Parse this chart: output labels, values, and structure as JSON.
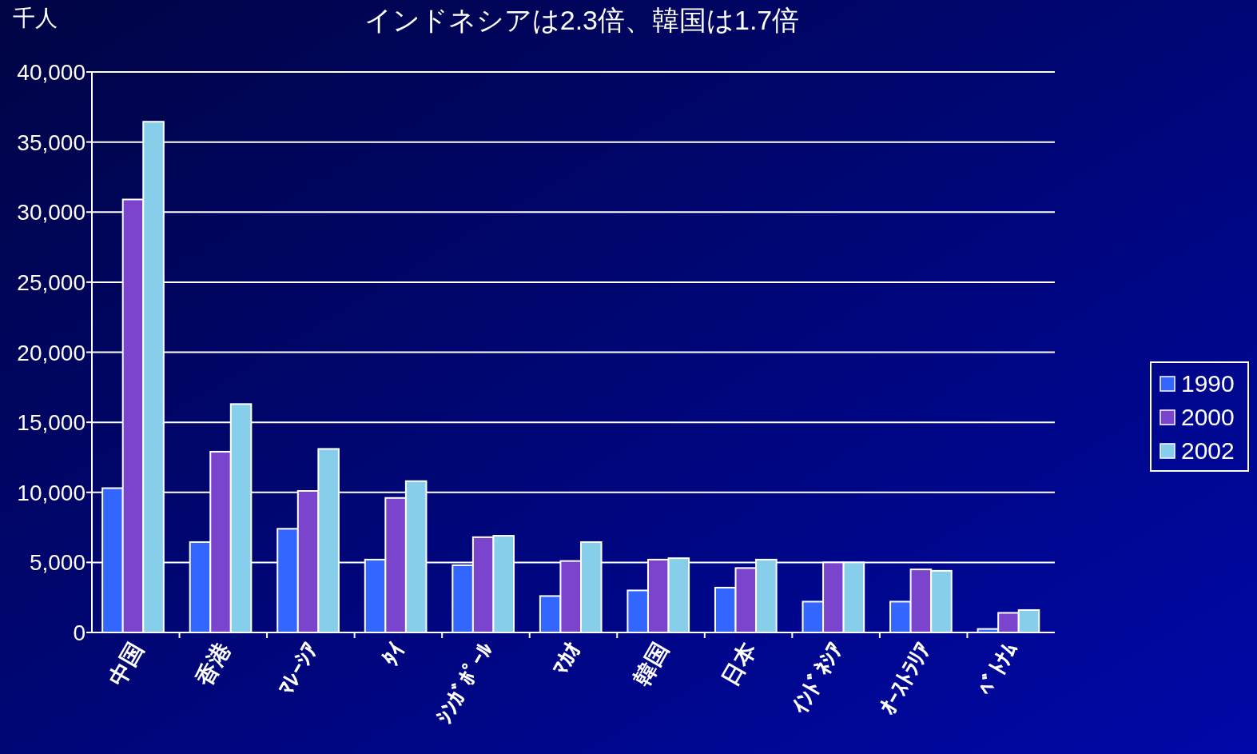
{
  "chart_data": {
    "type": "bar",
    "title": "インドネシアは2.3倍、韓国は1.7倍",
    "ylabel": "千人",
    "categories": [
      "中国",
      "香港",
      "ﾏﾚｰｼｱ",
      "ﾀｲ",
      "ｼﾝｶﾞﾎﾟｰﾙ",
      "ﾏｶｵ",
      "韓国",
      "日本",
      "ｲﾝﾄﾞﾈｼｱ",
      "ｵｰｽﾄﾗﾘｱ",
      "ﾍﾞﾄﾅﾑ"
    ],
    "series": [
      {
        "name": "1990",
        "color": "#3366ff",
        "values": [
          10300,
          6450,
          7400,
          5200,
          4800,
          2600,
          3000,
          3200,
          2200,
          2200,
          250
        ]
      },
      {
        "name": "2000",
        "color": "#7b44cc",
        "values": [
          30900,
          12900,
          10100,
          9600,
          6800,
          5100,
          5200,
          4600,
          5000,
          4500,
          1400
        ]
      },
      {
        "name": "2002",
        "color": "#87ceeb",
        "values": [
          36450,
          16300,
          13100,
          10800,
          6900,
          6450,
          5300,
          5200,
          5000,
          4400,
          1600
        ]
      }
    ],
    "ylim": [
      0,
      40000
    ],
    "yticks": [
      0,
      {
        "value": 5000,
        "label": "5,000"
      },
      {
        "value": 10000,
        "label": "10,000"
      },
      {
        "value": 15000,
        "label": "15,000"
      },
      {
        "value": 20000,
        "label": "20,000"
      },
      {
        "value": 25000,
        "label": "25,000"
      },
      {
        "value": 30000,
        "label": "30,000"
      },
      {
        "value": 35000,
        "label": "35,000"
      },
      {
        "value": 40000,
        "label": "40,000"
      }
    ],
    "grid": "y",
    "legend": "right"
  }
}
